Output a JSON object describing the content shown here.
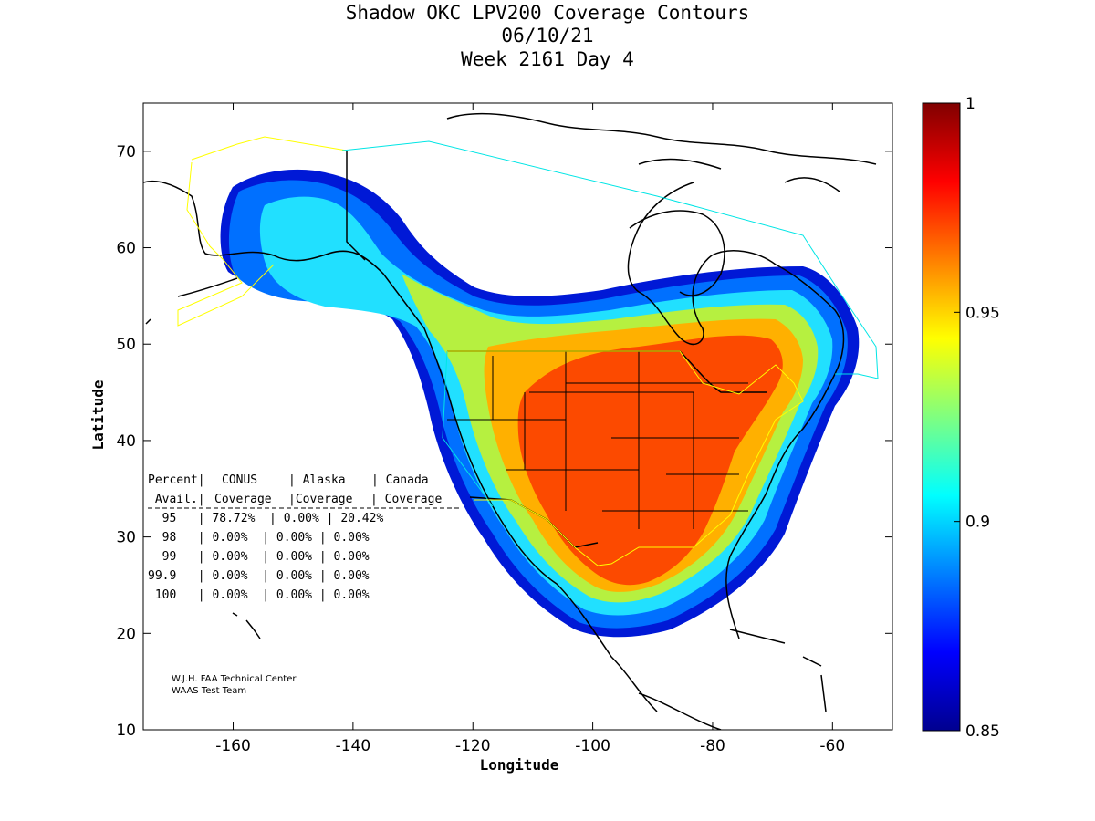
{
  "title_lines": [
    "Shadow OKC LPV200 Coverage Contours",
    "06/10/21",
    "Week 2161 Day 4"
  ],
  "axes": {
    "xlabel": "Longitude",
    "ylabel": "Latitude",
    "x_ticks": [
      "-160",
      "-140",
      "-120",
      "-100",
      "-80",
      "-60"
    ],
    "y_ticks": [
      "10",
      "20",
      "30",
      "40",
      "50",
      "60",
      "70"
    ]
  },
  "colorbar": {
    "ticks": [
      "0.85",
      "0.9",
      "0.95",
      "1"
    ]
  },
  "table": {
    "header1": [
      "Percent|",
      "CONUS",
      "| Alaska",
      "| Canada"
    ],
    "header2": [
      " Avail.|",
      "Coverage",
      "|Coverage",
      "| Coverage"
    ],
    "rows": [
      "  95   | 78.72%  | 0.00% | 20.42%",
      "  98   | 0.00%  | 0.00% | 0.00%",
      "  99   | 0.00%  | 0.00% | 0.00%",
      "99.9   | 0.00%  | 0.00% | 0.00%",
      " 100   | 0.00%  | 0.00% | 0.00%"
    ]
  },
  "credits": [
    "W.J.H. FAA Technical Center",
    "WAAS Test Team"
  ],
  "chart_data": {
    "type": "heatmap",
    "title": "Shadow OKC LPV200 Coverage Contours 06/10/21 Week 2161 Day 4",
    "xlabel": "Longitude",
    "ylabel": "Latitude",
    "xlim": [
      -175,
      -50
    ],
    "ylim": [
      10,
      75
    ],
    "colorbar_range": [
      0.85,
      1.0
    ],
    "colormap": "jet",
    "coverage_table": [
      {
        "percent_avail": "95",
        "conus": "78.72%",
        "alaska": "0.00%",
        "canada": "20.42%"
      },
      {
        "percent_avail": "98",
        "conus": "0.00%",
        "alaska": "0.00%",
        "canada": "0.00%"
      },
      {
        "percent_avail": "99",
        "conus": "0.00%",
        "alaska": "0.00%",
        "canada": "0.00%"
      },
      {
        "percent_avail": "99.9",
        "conus": "0.00%",
        "alaska": "0.00%",
        "canada": "0.00%"
      },
      {
        "percent_avail": "100",
        "conus": "0.00%",
        "alaska": "0.00%",
        "canada": "0.00%"
      }
    ]
  }
}
